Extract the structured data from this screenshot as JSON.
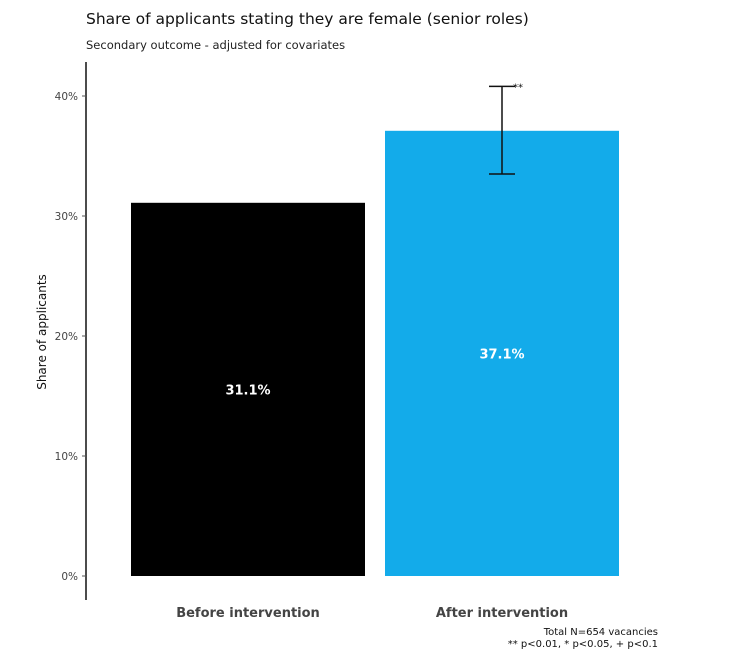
{
  "chart_data": {
    "type": "bar",
    "title": "Share of applicants stating they are female (senior roles)",
    "subtitle": "Secondary outcome - adjusted for covariates",
    "xlabel": "",
    "ylabel": "Share of applicants",
    "ylim": [
      0,
      0.43
    ],
    "yticks": [
      0,
      0.1,
      0.2,
      0.3,
      0.4
    ],
    "ytick_labels": [
      "0%",
      "10%",
      "20%",
      "30%",
      "40%"
    ],
    "categories": [
      "Before intervention",
      "After intervention"
    ],
    "values": [
      0.311,
      0.371
    ],
    "data_labels": [
      "31.1%",
      "37.1%"
    ],
    "colors": [
      "#000000",
      "#13abea"
    ],
    "error_bar": {
      "category": "After intervention",
      "low": 0.335,
      "high": 0.408,
      "significance": "**"
    },
    "grid": false,
    "legend": "none"
  },
  "footnote": {
    "line1": "Total N=654 vacancies",
    "line2": "** p<0.01, * p<0.05, + p<0.1"
  }
}
